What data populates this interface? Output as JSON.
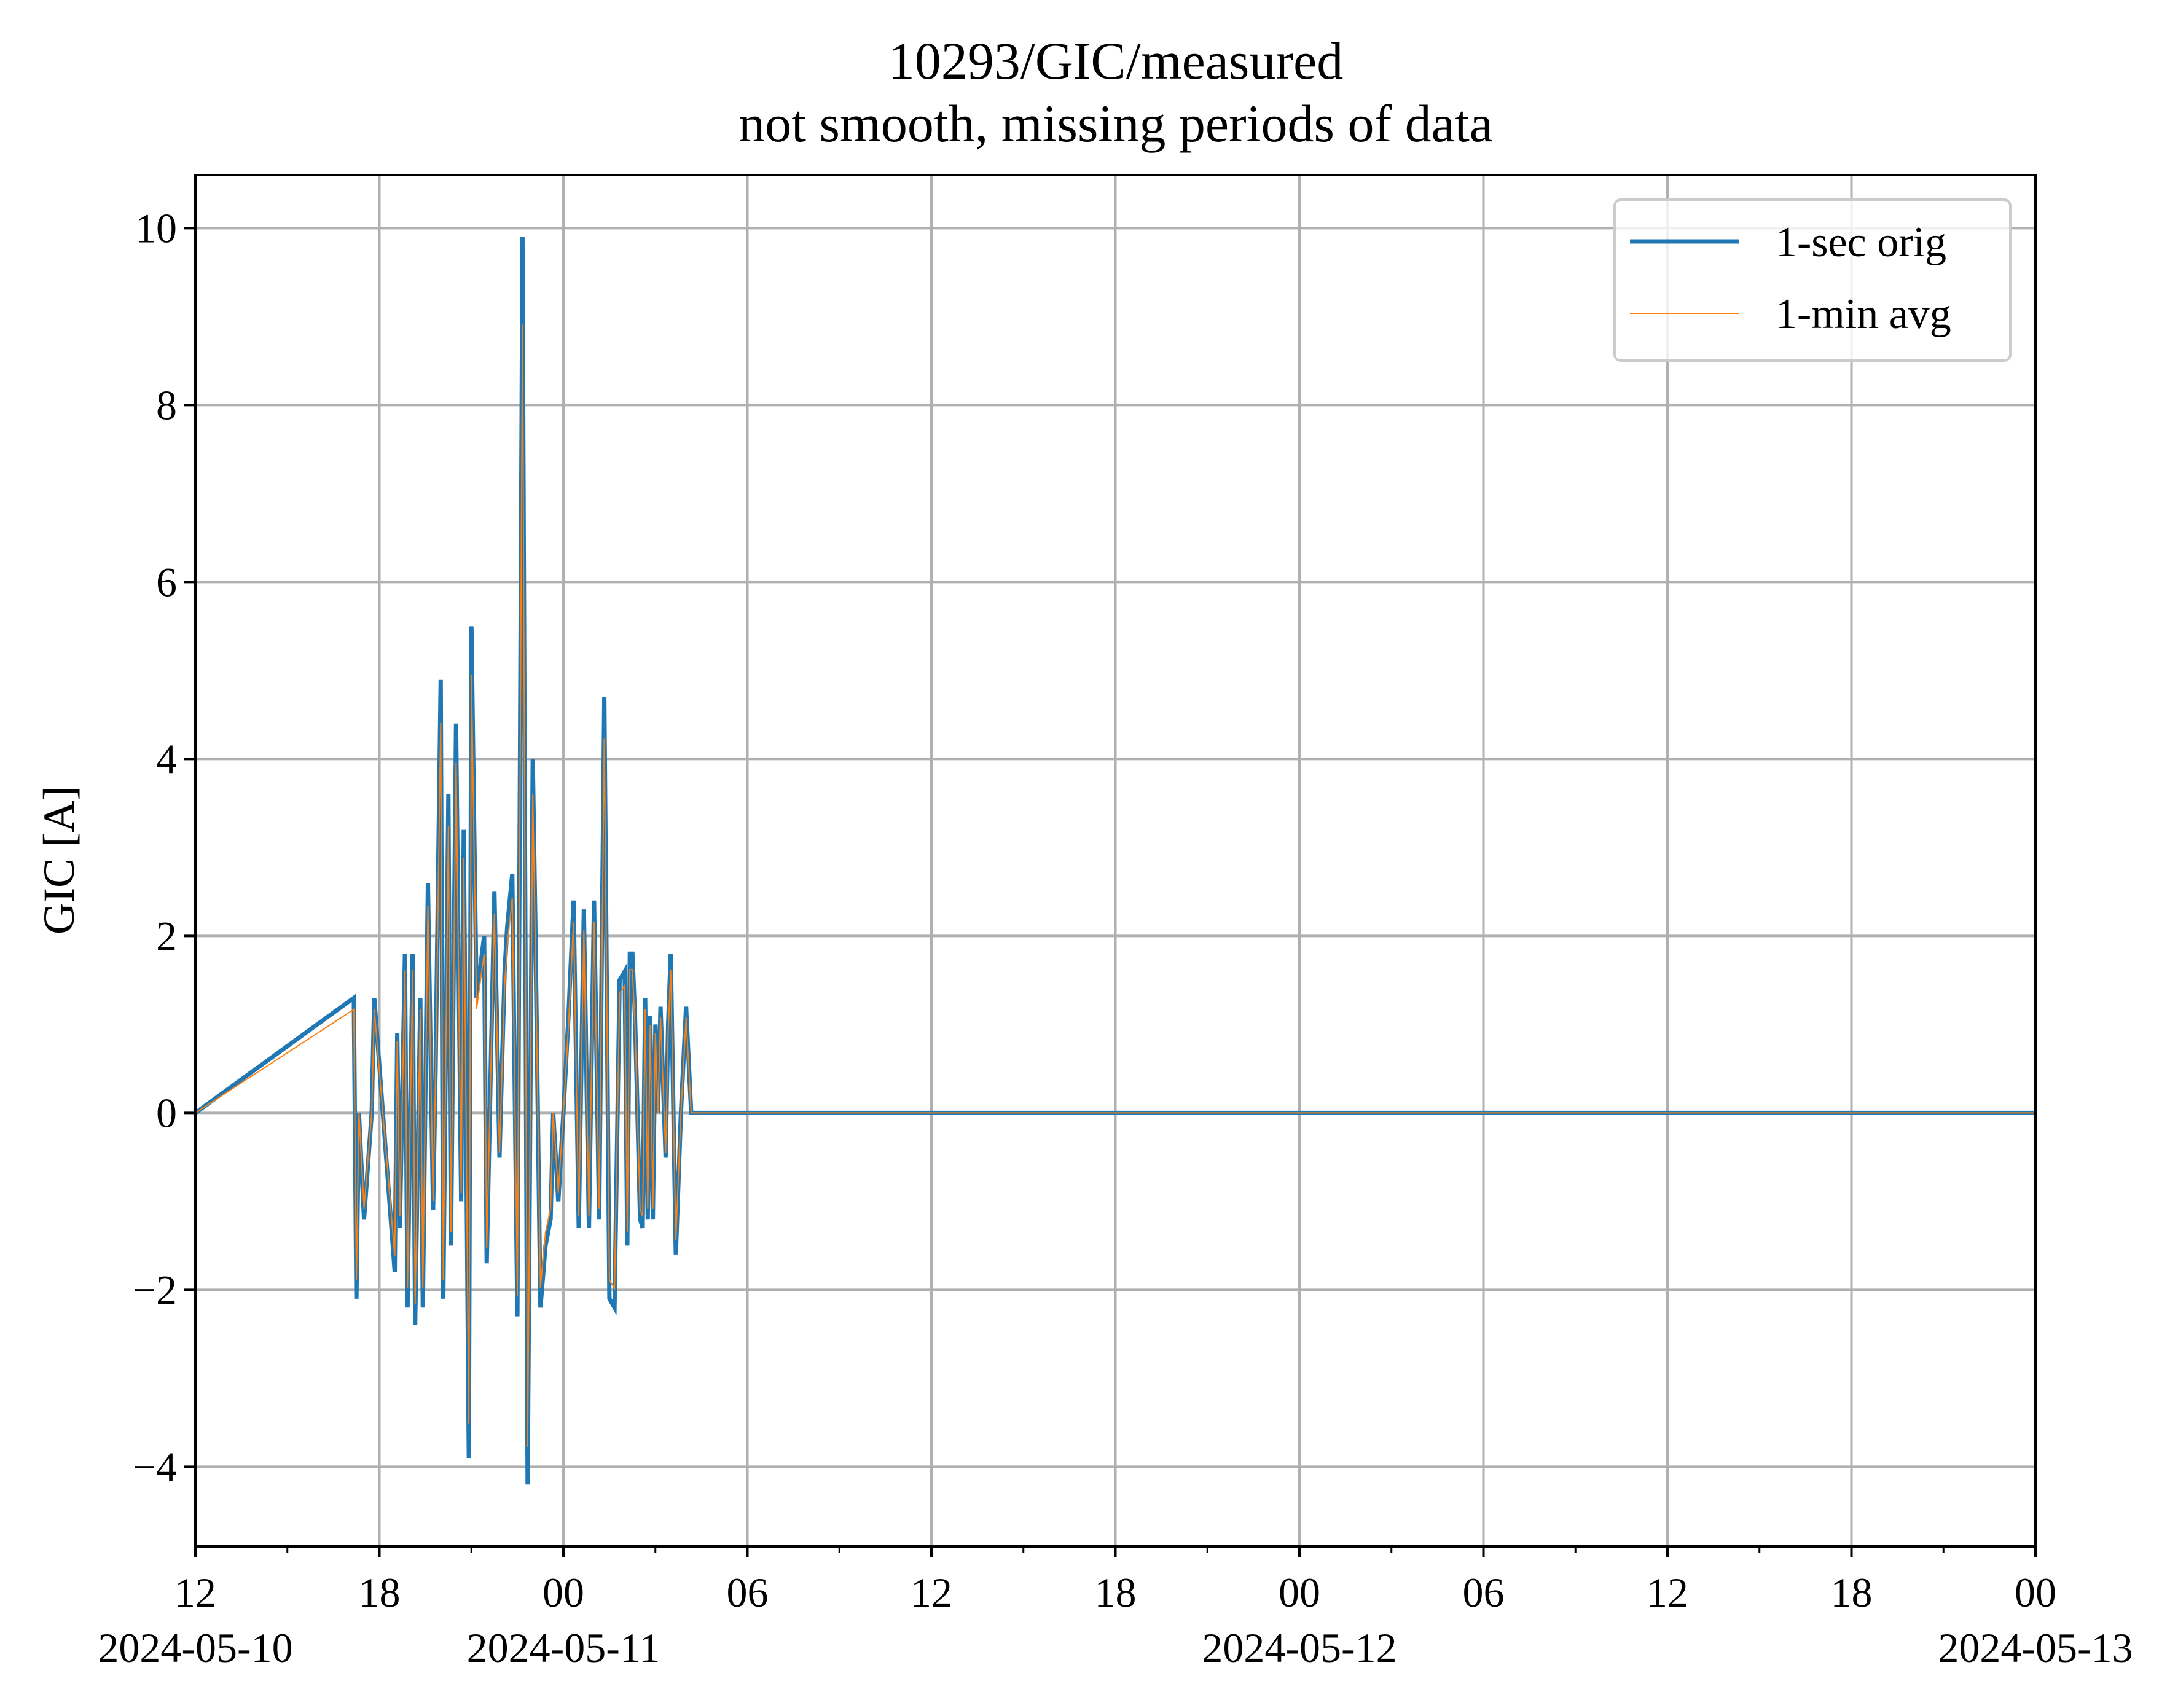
{
  "chart_data": {
    "type": "line",
    "title": "10293/GIC/measured",
    "subtitle": "not smooth, missing periods of data",
    "xlabel": "",
    "ylabel": "GIC [A]",
    "xlim": [
      "2024-05-10 12:00",
      "2024-05-13 00:00"
    ],
    "ylim": [
      -4.9,
      10.6
    ],
    "grid": true,
    "legend_position": "top-right",
    "y_ticks": [
      {
        "value": -4,
        "label": "−4"
      },
      {
        "value": -2,
        "label": "−2"
      },
      {
        "value": 0,
        "label": "0"
      },
      {
        "value": 2,
        "label": "2"
      },
      {
        "value": 4,
        "label": "4"
      },
      {
        "value": 6,
        "label": "6"
      },
      {
        "value": 8,
        "label": "8"
      },
      {
        "value": 10,
        "label": "10"
      }
    ],
    "x_major_ticks": [
      {
        "value": "2024-05-10 12:00",
        "label": "12",
        "date_label": "2024-05-10"
      },
      {
        "value": "2024-05-10 18:00",
        "label": "18",
        "date_label": ""
      },
      {
        "value": "2024-05-11 00:00",
        "label": "00",
        "date_label": "2024-05-11"
      },
      {
        "value": "2024-05-11 06:00",
        "label": "06",
        "date_label": ""
      },
      {
        "value": "2024-05-11 12:00",
        "label": "12",
        "date_label": ""
      },
      {
        "value": "2024-05-11 18:00",
        "label": "18",
        "date_label": ""
      },
      {
        "value": "2024-05-12 00:00",
        "label": "00",
        "date_label": "2024-05-12"
      },
      {
        "value": "2024-05-12 06:00",
        "label": "06",
        "date_label": ""
      },
      {
        "value": "2024-05-12 12:00",
        "label": "12",
        "date_label": ""
      },
      {
        "value": "2024-05-12 18:00",
        "label": "18",
        "date_label": ""
      },
      {
        "value": "2024-05-13 00:00",
        "label": "00",
        "date_label": "2024-05-13"
      }
    ],
    "x_minor_ticks": [
      "2024-05-10 15:00",
      "2024-05-10 21:00",
      "2024-05-11 03:00",
      "2024-05-11 09:00",
      "2024-05-11 15:00",
      "2024-05-11 21:00",
      "2024-05-12 03:00",
      "2024-05-12 09:00",
      "2024-05-12 15:00",
      "2024-05-12 21:00"
    ],
    "series": [
      {
        "name": "1-sec orig",
        "color": "#1f77b4",
        "x": [
          "2024-05-10 12:00",
          "2024-05-10 17:10",
          "2024-05-10 17:15",
          "2024-05-10 17:20",
          "2024-05-10 17:30",
          "2024-05-10 17:45",
          "2024-05-10 17:50",
          "2024-05-10 18:30",
          "2024-05-10 18:35",
          "2024-05-10 18:40",
          "2024-05-10 18:50",
          "2024-05-10 18:55",
          "2024-05-10 19:05",
          "2024-05-10 19:10",
          "2024-05-10 19:20",
          "2024-05-10 19:25",
          "2024-05-10 19:35",
          "2024-05-10 19:45",
          "2024-05-10 19:50",
          "2024-05-10 20:00",
          "2024-05-10 20:05",
          "2024-05-10 20:15",
          "2024-05-10 20:20",
          "2024-05-10 20:30",
          "2024-05-10 20:40",
          "2024-05-10 20:45",
          "2024-05-10 20:55",
          "2024-05-10 21:00",
          "2024-05-10 21:10",
          "2024-05-10 21:25",
          "2024-05-10 21:30",
          "2024-05-10 21:45",
          "2024-05-10 21:55",
          "2024-05-10 22:05",
          "2024-05-10 22:10",
          "2024-05-10 22:20",
          "2024-05-10 22:30",
          "2024-05-10 22:40",
          "2024-05-10 22:50",
          "2024-05-10 23:00",
          "2024-05-10 23:05",
          "2024-05-10 23:15",
          "2024-05-10 23:25",
          "2024-05-10 23:35",
          "2024-05-10 23:40",
          "2024-05-10 23:50",
          "2024-05-11 00:00",
          "2024-05-11 00:10",
          "2024-05-11 00:20",
          "2024-05-11 00:30",
          "2024-05-11 00:40",
          "2024-05-11 00:50",
          "2024-05-11 01:00",
          "2024-05-11 01:10",
          "2024-05-11 01:20",
          "2024-05-11 01:30",
          "2024-05-11 01:40",
          "2024-05-11 01:50",
          "2024-05-11 02:00",
          "2024-05-11 02:05",
          "2024-05-11 02:10",
          "2024-05-11 02:15",
          "2024-05-11 02:20",
          "2024-05-11 02:25",
          "2024-05-11 02:30",
          "2024-05-11 02:35",
          "2024-05-11 02:40",
          "2024-05-11 02:45",
          "2024-05-11 02:50",
          "2024-05-11 02:55",
          "2024-05-11 03:00",
          "2024-05-11 03:05",
          "2024-05-11 03:10",
          "2024-05-11 03:20",
          "2024-05-11 03:25",
          "2024-05-11 03:30",
          "2024-05-11 03:40",
          "2024-05-11 03:50",
          "2024-05-11 04:00",
          "2024-05-11 04:10",
          "2024-05-11 04:20",
          "2024-05-11 04:30",
          "2024-05-11 04:40",
          "2024-05-11 04:45",
          "2024-05-11 04:50",
          "2024-05-11 05:00",
          "2024-05-11 05:10",
          "2024-05-11 05:20",
          "2024-05-11 05:30",
          "2024-05-11 06:20",
          "2024-05-11 06:35",
          "2024-05-11 06:45",
          "2024-05-11 07:00",
          "2024-05-11 07:15",
          "2024-05-11 07:30",
          "2024-05-11 07:45",
          "2024-05-11 08:00",
          "2024-05-11 08:15",
          "2024-05-11 08:30",
          "2024-05-11 08:45",
          "2024-05-11 09:00",
          "2024-05-11 09:15",
          "2024-05-11 09:30",
          "2024-05-11 09:40",
          "2024-05-11 09:45",
          "2024-05-11 10:00",
          "2024-05-11 10:15",
          "2024-05-11 10:30",
          "2024-05-11 10:40",
          "2024-05-11 10:45",
          "2024-05-11 11:00",
          "2024-05-11 11:15",
          "2024-05-11 11:30",
          "2024-05-11 11:45",
          "2024-05-11 12:00",
          "2024-05-11 12:15",
          "2024-05-11 12:30",
          "2024-05-11 12:45",
          "2024-05-11 13:00",
          "2024-05-11 13:15",
          "2024-05-11 13:30",
          "2024-05-11 13:45",
          "2024-05-11 14:00",
          "2024-05-11 18:00",
          "2024-05-11 19:30",
          "2024-05-11 20:00",
          "2024-05-11 20:30",
          "2024-05-11 21:00",
          "2024-05-11 21:30",
          "2024-05-11 22:00",
          "2024-05-11 22:30",
          "2024-05-12 01:00",
          "2024-05-12 02:00",
          "2024-05-12 02:20",
          "2024-05-12 02:40",
          "2024-05-12 04:00",
          "2024-05-12 04:20",
          "2024-05-12 04:40",
          "2024-05-12 21:20",
          "2024-05-12 21:25",
          "2024-05-12 21:30",
          "2024-05-13 00:00"
        ],
        "y": [
          0,
          1.3,
          -2.1,
          0,
          -1.2,
          0,
          1.3,
          -1.8,
          0.9,
          -1.3,
          1.8,
          -2.2,
          1.8,
          -2.4,
          1.3,
          -2.2,
          2.6,
          -1.1,
          0.5,
          4.9,
          -2.1,
          3.6,
          -1.5,
          4.4,
          -1.0,
          3.2,
          -3.9,
          5.5,
          1.3,
          2.0,
          -1.7,
          2.5,
          -0.5,
          1.6,
          2.1,
          2.7,
          -2.3,
          9.9,
          -4.2,
          4.0,
          2.2,
          -2.2,
          -1.5,
          -1.2,
          0,
          -1.0,
          0,
          1.1,
          2.4,
          -1.3,
          2.3,
          -1.3,
          2.4,
          -1.2,
          4.7,
          -2.1,
          -2.2,
          1.5,
          1.6,
          -1.5,
          1.8,
          1.8,
          1.1,
          0,
          -1.2,
          -1.3,
          1.3,
          -1.2,
          1.1,
          -1.2,
          1.0,
          0,
          1.2,
          -0.5,
          1.0,
          1.8,
          -1.6,
          0,
          1.2,
          0,
          0,
          0,
          0,
          0,
          0,
          0,
          0,
          0,
          0,
          0,
          0,
          0,
          0,
          0,
          0,
          0,
          0,
          0,
          0,
          0,
          0,
          0,
          0,
          0,
          0,
          0,
          0,
          0,
          0,
          0,
          0,
          0,
          0,
          0,
          0,
          0,
          0,
          0,
          0,
          0,
          0,
          0,
          0,
          0,
          0,
          0,
          0,
          0,
          0,
          0,
          0,
          0,
          0,
          0,
          0,
          0,
          0,
          0,
          0,
          0,
          0,
          0
        ]
      },
      {
        "name": "1-min avg",
        "color": "#ff7f0e",
        "x": [],
        "y": []
      }
    ]
  }
}
